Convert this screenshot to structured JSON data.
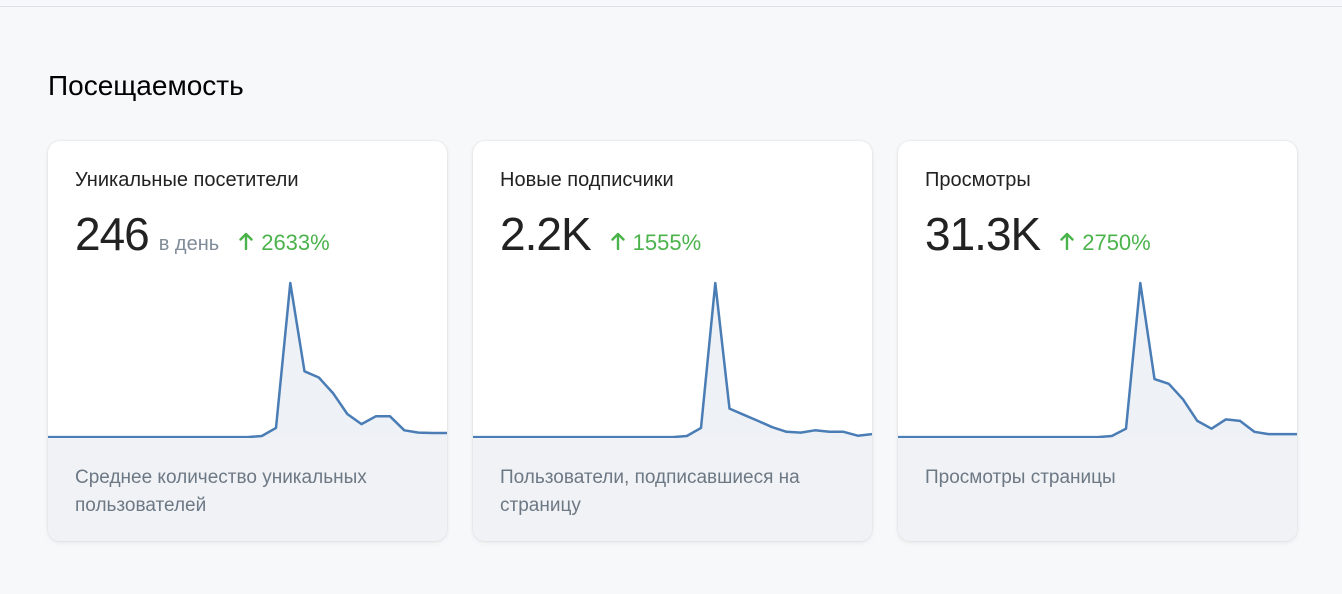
{
  "header": {
    "title": "Посещаемость"
  },
  "cards": [
    {
      "title": "Уникальные посетители",
      "value": "246",
      "unit": "в день",
      "change": "2633%",
      "description": "Среднее количество уникальных пользователей",
      "sparkline": {
        "ylim": [
          0,
          100
        ],
        "color": "#4a7db5",
        "values": [
          0.6,
          0.6,
          0.6,
          0.6,
          0.6,
          0.6,
          0.6,
          0.6,
          0.6,
          0.6,
          0.6,
          0.6,
          0.6,
          0.6,
          0.6,
          1.3,
          6.5,
          100,
          43,
          39,
          29,
          15.5,
          9,
          14,
          14,
          5,
          3.5,
          3.2,
          3.2
        ]
      }
    },
    {
      "title": "Новые подписчики",
      "value": "2.2K",
      "change": "1555%",
      "description": "Пользователи, подписавшиеся на страницу",
      "sparkline": {
        "ylim": [
          0,
          100
        ],
        "color": "#4a7db5",
        "values": [
          0.6,
          0.6,
          0.6,
          0.6,
          0.6,
          0.6,
          0.6,
          0.6,
          0.6,
          0.6,
          0.6,
          0.6,
          0.6,
          0.6,
          0.6,
          1.3,
          6.5,
          100,
          19,
          15,
          11,
          7,
          4,
          3.5,
          5,
          4,
          4,
          1.5,
          2.5
        ]
      }
    },
    {
      "title": "Просмотры",
      "value": "31.3K",
      "change": "2750%",
      "description": "Просмотры страницы",
      "sparkline": {
        "ylim": [
          0,
          100
        ],
        "color": "#4a7db5",
        "values": [
          0.6,
          0.6,
          0.6,
          0.6,
          0.6,
          0.6,
          0.6,
          0.6,
          0.6,
          0.6,
          0.6,
          0.6,
          0.6,
          0.6,
          0.6,
          1.3,
          6,
          100,
          38,
          35,
          25,
          11,
          6,
          12,
          11,
          4,
          2.5,
          2.5,
          2.5
        ]
      }
    }
  ]
}
